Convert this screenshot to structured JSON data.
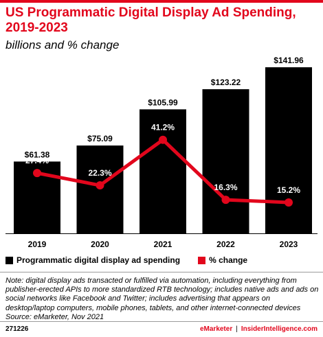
{
  "header": {
    "title": "US Programmatic Digital Display Ad Spending, 2019-2023",
    "subtitle": "billions and % change"
  },
  "chart_data": {
    "type": "bar",
    "categories": [
      "2019",
      "2020",
      "2021",
      "2022",
      "2023"
    ],
    "series": [
      {
        "name": "Programmatic digital display ad spending",
        "type": "bar",
        "values": [
          61.38,
          75.09,
          105.99,
          123.22,
          141.96
        ],
        "labels": [
          "$61.38",
          "$75.09",
          "$105.99",
          "$123.22",
          "$141.96"
        ],
        "color": "#000000"
      },
      {
        "name": "% change",
        "type": "line",
        "values": [
          27.4,
          22.3,
          41.2,
          16.3,
          15.2
        ],
        "labels": [
          "27.4%",
          "22.3%",
          "41.2%",
          "16.3%",
          "15.2%"
        ],
        "color": "#e2061c"
      }
    ],
    "title": "US Programmatic Digital Display Ad Spending, 2019-2023",
    "subtitle": "billions and % change",
    "legend_position": "bottom-left",
    "grid": false
  },
  "legend": {
    "bar_label": "Programmatic digital display ad spending",
    "line_label": "% change"
  },
  "note": "Note: digital display ads transacted or fulfilled via automation, including everything from publisher-erected APIs to more standardized RTB technology; includes native ads and ads on social networks like Facebook and Twitter; includes advertising that appears on desktop/laptop computers, mobile phones, tablets, and other internet-connected devices",
  "source": "Source: eMarketer, Nov 2021",
  "footer": {
    "id": "271226",
    "brand_left": "eMarketer",
    "separator": "|",
    "brand_right": "InsiderIntelligence.com"
  },
  "colors": {
    "accent": "#e2061c",
    "bar": "#000000"
  }
}
